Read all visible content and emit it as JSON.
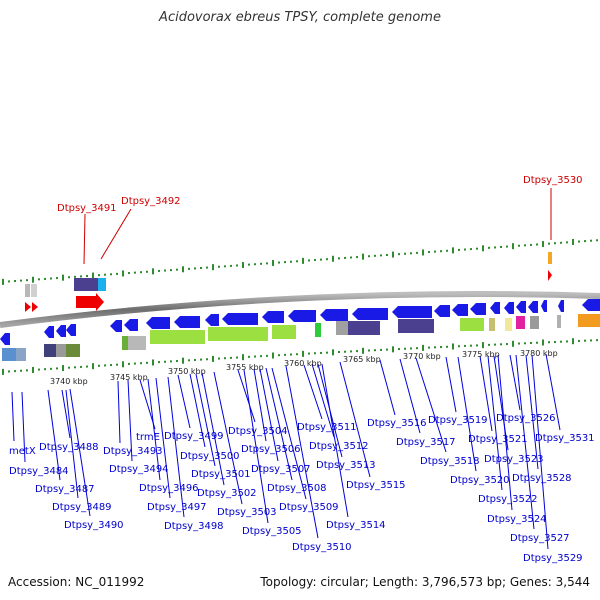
{
  "header": {
    "title": "Acidovorax ebreus TPSY, complete genome"
  },
  "footer": {
    "accession": "Accession: NC_011992",
    "summary": "Topology: circular; Length: 3,796,573 bp; Genes: 3,544"
  },
  "colors": {
    "backbone": "#7a7a7a",
    "forward_gene": "#1a1ae6",
    "reverse_gene": "#1a1ae6",
    "highlight_gene": "#ee0000",
    "pseudo_gene": "#9be040",
    "ruler_tick": "#2e8b2e",
    "label": "#0000cc",
    "highlight_label": "#cc0000"
  },
  "kbp_ticks": [
    "3740 kbp",
    "3745 kbp",
    "3750 kbp",
    "3755 kbp",
    "3760 kbp",
    "3765 kbp",
    "3770 kbp",
    "3775 kbp",
    "3780 kbp"
  ],
  "highlighted_genes": [
    "Dtpsy_3491",
    "Dtpsy_3492",
    "Dtpsy_3530"
  ],
  "gene_labels": [
    "metX",
    "Dtpsy_3484",
    "Dtpsy_3487",
    "Dtpsy_3488",
    "Dtpsy_3489",
    "Dtpsy_3490",
    "trmE",
    "Dtpsy_3493",
    "Dtpsy_3494",
    "Dtpsy_3496",
    "Dtpsy_3497",
    "Dtpsy_3498",
    "Dtpsy_3499",
    "Dtpsy_3500",
    "Dtpsy_3501",
    "Dtpsy_3502",
    "Dtpsy_3503",
    "Dtpsy_3504",
    "Dtpsy_3505",
    "Dtpsy_3506",
    "Dtpsy_3507",
    "Dtpsy_3508",
    "Dtpsy_3509",
    "Dtpsy_3510",
    "Dtpsy_3511",
    "Dtpsy_3512",
    "Dtpsy_3513",
    "Dtpsy_3514",
    "Dtpsy_3515",
    "Dtpsy_3516",
    "Dtpsy_3517",
    "Dtpsy_3518",
    "Dtpsy_3519",
    "Dtpsy_3520",
    "Dtpsy_3521",
    "Dtpsy_3522",
    "Dtpsy_3523",
    "Dtpsy_3524",
    "Dtpsy_3526",
    "Dtpsy_3527",
    "Dtpsy_3528",
    "Dtpsy_3529",
    "Dtpsy_3531"
  ]
}
